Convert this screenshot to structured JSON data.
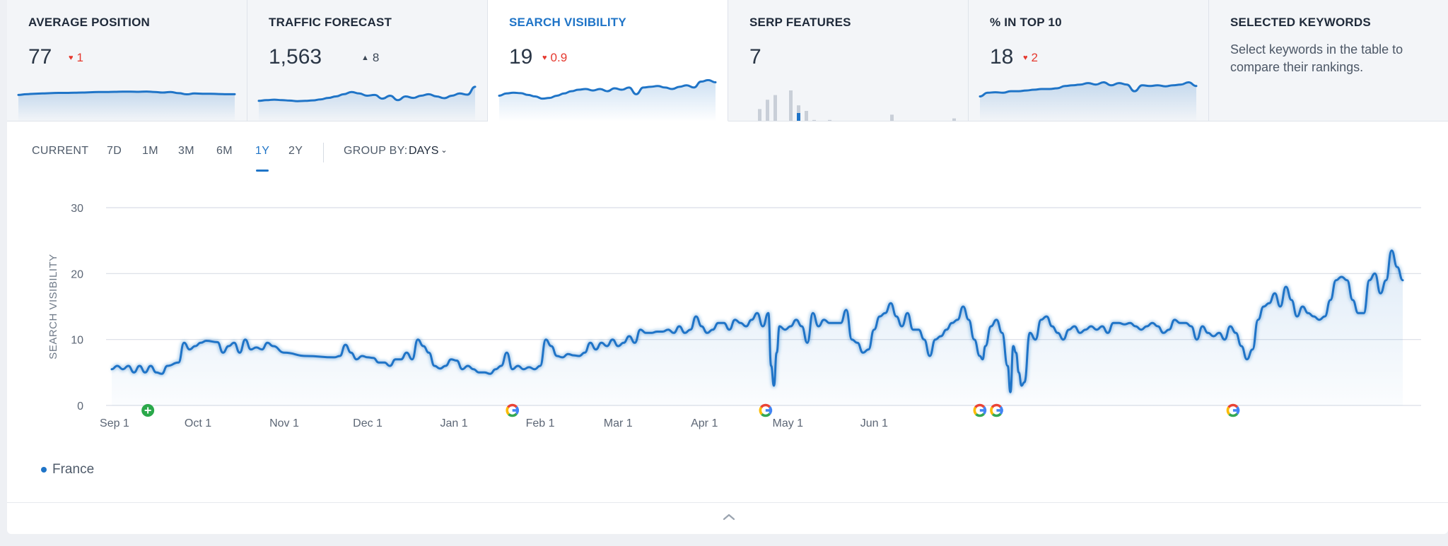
{
  "metrics": [
    {
      "title": "AVERAGE POSITION",
      "value": "77",
      "delta": "1",
      "direction": "down",
      "spark": [
        6,
        6.5,
        6.8,
        7,
        7.2,
        7.4,
        7.4,
        7.5,
        7.6,
        7.8,
        8,
        8,
        8.1,
        8.2,
        8.2,
        8.1,
        8.3,
        8,
        7.6,
        8,
        7.2,
        6.4,
        7,
        6.8,
        6.8,
        6.6,
        6.5,
        6.5
      ]
    },
    {
      "title": "TRAFFIC FORECAST",
      "value": "1,563",
      "delta": "8",
      "direction": "up",
      "spark": [
        2,
        2.5,
        2.8,
        2.5,
        2.2,
        1.8,
        2,
        2.3,
        3,
        4,
        5,
        6.5,
        8,
        7,
        5.5,
        6,
        3.5,
        5.5,
        2.5,
        5,
        4,
        5.5,
        6.5,
        5,
        3.8,
        5.5,
        7,
        6.2,
        11.5
      ]
    },
    {
      "title": "SEARCH VISIBILITY",
      "value": "19",
      "delta": "0.9",
      "direction": "down",
      "spark": [
        5.5,
        7,
        7.5,
        7.2,
        6,
        5,
        3.5,
        4,
        5.5,
        7,
        8.5,
        9.5,
        10,
        9,
        10,
        8.5,
        10.5,
        9.5,
        11,
        6.5,
        11,
        11.5,
        12,
        11,
        10,
        11.5,
        12.5,
        11,
        15,
        16,
        14.5
      ]
    },
    {
      "title": "SERP FEATURES",
      "value": "7",
      "bars": [
        {
          "g": 2,
          "h": 0.4
        },
        {
          "g": 3,
          "h": 0.7
        },
        {
          "g": 4,
          "h": 0.85
        },
        {
          "g": 6,
          "h": 1.0
        },
        {
          "g": 7,
          "h": 0.52,
          "active": true
        },
        {
          "g": 8,
          "h": 0.34
        },
        {
          "g": 9,
          "h": 0.05
        },
        {
          "g": 11,
          "h": 0.05
        },
        {
          "g": 19,
          "h": 0.22
        },
        {
          "g": 27,
          "h": 0.1
        }
      ]
    },
    {
      "title": "% IN TOP 10",
      "value": "18",
      "delta": "2",
      "direction": "down",
      "spark": [
        5,
        7.5,
        7.8,
        7.5,
        8.5,
        8.5,
        9,
        9.5,
        10,
        10,
        10.5,
        12,
        12.5,
        13,
        14,
        13,
        14.5,
        12.5,
        14,
        13,
        8.5,
        12.5,
        12,
        12.5,
        11.8,
        12.5,
        13,
        14.5,
        12
      ]
    },
    {
      "title": "SELECTED KEYWORDS",
      "description": "Select keywords in the table to compare their rankings."
    }
  ],
  "toolbar": {
    "periods": [
      "CURRENT",
      "7D",
      "1M",
      "3M",
      "6M",
      "1Y",
      "2Y"
    ],
    "active_period": "1Y",
    "group_by_label": "GROUP BY:",
    "group_by_value": "DAYS"
  },
  "chart_data": {
    "type": "area",
    "ylabel": "SEARCH VISIBILITY",
    "ylim": [
      0,
      30
    ],
    "yticks": [
      0,
      10,
      20,
      30
    ],
    "xticks": [
      "Sep 1",
      "Oct 1",
      "Nov 1",
      "Dec 1",
      "Jan 1",
      "Feb 1",
      "Mar 1",
      "Apr 1",
      "May 1",
      "Jun 1"
    ],
    "x_start": "Aug 31",
    "x_end": "Jun 21",
    "series": [
      {
        "name": "France",
        "color": "#1f74c7",
        "points": [
          [
            0,
            5.5
          ],
          [
            2,
            6
          ],
          [
            4,
            5.5
          ],
          [
            6,
            6
          ],
          [
            8,
            5
          ],
          [
            10,
            6
          ],
          [
            12,
            5
          ],
          [
            14,
            6
          ],
          [
            16,
            5
          ],
          [
            18,
            4.8
          ],
          [
            20,
            6
          ],
          [
            24,
            6.5
          ],
          [
            26,
            9.5
          ],
          [
            28,
            8.5
          ],
          [
            30,
            9
          ],
          [
            32,
            9.5
          ],
          [
            34,
            9.8
          ],
          [
            38,
            9.6
          ],
          [
            40,
            8
          ],
          [
            42,
            9
          ],
          [
            44,
            9.5
          ],
          [
            46,
            8
          ],
          [
            48,
            10
          ],
          [
            50,
            8.5
          ],
          [
            52,
            8.8
          ],
          [
            54,
            8.5
          ],
          [
            56,
            9.5
          ],
          [
            58,
            9
          ],
          [
            62,
            8
          ],
          [
            70,
            7.5
          ],
          [
            80,
            7.3
          ],
          [
            82,
            7.5
          ],
          [
            84,
            9.2
          ],
          [
            86,
            8
          ],
          [
            88,
            7
          ],
          [
            90,
            7.5
          ],
          [
            92,
            7.3
          ],
          [
            94,
            7.2
          ],
          [
            96,
            6.5
          ],
          [
            98,
            6.5
          ],
          [
            100,
            6
          ],
          [
            102,
            7
          ],
          [
            104,
            7
          ],
          [
            106,
            8
          ],
          [
            108,
            7
          ],
          [
            110,
            10
          ],
          [
            112,
            9
          ],
          [
            114,
            8
          ],
          [
            116,
            6
          ],
          [
            118,
            5.6
          ],
          [
            120,
            6
          ],
          [
            122,
            7
          ],
          [
            124,
            6.8
          ],
          [
            126,
            5.5
          ],
          [
            128,
            6
          ],
          [
            130,
            5.5
          ],
          [
            132,
            5
          ],
          [
            134,
            5
          ],
          [
            136,
            4.8
          ],
          [
            138,
            5.5
          ],
          [
            140,
            6
          ],
          [
            142,
            8
          ],
          [
            144,
            5.5
          ],
          [
            146,
            6
          ],
          [
            148,
            5.5
          ],
          [
            150,
            5.8
          ],
          [
            152,
            5.5
          ],
          [
            154,
            6
          ],
          [
            156,
            10
          ],
          [
            158,
            9
          ],
          [
            160,
            7.5
          ],
          [
            162,
            7.3
          ],
          [
            164,
            7.8
          ],
          [
            166,
            7.6
          ],
          [
            168,
            7.5
          ],
          [
            170,
            8
          ],
          [
            172,
            9.5
          ],
          [
            174,
            8.5
          ],
          [
            176,
            9.5
          ],
          [
            178,
            9
          ],
          [
            180,
            10
          ],
          [
            182,
            9
          ],
          [
            184,
            9.5
          ],
          [
            186,
            10.5
          ],
          [
            188,
            9.5
          ],
          [
            190,
            11.5
          ],
          [
            192,
            11
          ],
          [
            194,
            11
          ],
          [
            196,
            11.2
          ],
          [
            198,
            11.2
          ],
          [
            200,
            11.5
          ],
          [
            202,
            11
          ],
          [
            204,
            12
          ],
          [
            206,
            11
          ],
          [
            208,
            11.5
          ],
          [
            210,
            13.5
          ],
          [
            212,
            12
          ],
          [
            214,
            11
          ],
          [
            216,
            11.5
          ],
          [
            218,
            12.5
          ],
          [
            220,
            12.5
          ],
          [
            222,
            11.5
          ],
          [
            224,
            13
          ],
          [
            226,
            12.5
          ],
          [
            228,
            12
          ],
          [
            230,
            13
          ],
          [
            232,
            14
          ],
          [
            234,
            12
          ],
          [
            236,
            14
          ],
          [
            237,
            6
          ],
          [
            238,
            3
          ],
          [
            239,
            8
          ],
          [
            240,
            12
          ],
          [
            242,
            11.5
          ],
          [
            244,
            12
          ],
          [
            246,
            13
          ],
          [
            248,
            12
          ],
          [
            250,
            9.5
          ],
          [
            252,
            14
          ],
          [
            254,
            12
          ],
          [
            256,
            13
          ],
          [
            258,
            12.5
          ],
          [
            260,
            12.5
          ],
          [
            262,
            12.5
          ],
          [
            264,
            14.5
          ],
          [
            266,
            10
          ],
          [
            268,
            9.5
          ],
          [
            270,
            8
          ],
          [
            272,
            8.5
          ],
          [
            274,
            11.5
          ],
          [
            276,
            13.5
          ],
          [
            278,
            14
          ],
          [
            280,
            15.5
          ],
          [
            282,
            13.5
          ],
          [
            284,
            12
          ],
          [
            286,
            14
          ],
          [
            288,
            11.5
          ],
          [
            290,
            11.5
          ],
          [
            292,
            10
          ],
          [
            294,
            7.5
          ],
          [
            296,
            10
          ],
          [
            298,
            10.5
          ],
          [
            300,
            11.5
          ],
          [
            302,
            12.5
          ],
          [
            304,
            13
          ],
          [
            306,
            15
          ],
          [
            308,
            13
          ],
          [
            310,
            10
          ],
          [
            312,
            7.5
          ],
          [
            313,
            7
          ],
          [
            314,
            9
          ],
          [
            316,
            12
          ],
          [
            318,
            13
          ],
          [
            320,
            11
          ],
          [
            322,
            6
          ],
          [
            323,
            2
          ],
          [
            324,
            9
          ],
          [
            325,
            8
          ],
          [
            326,
            5
          ],
          [
            327,
            3
          ],
          [
            328,
            3.5
          ],
          [
            330,
            11
          ],
          [
            332,
            10
          ],
          [
            334,
            13
          ],
          [
            336,
            13.5
          ],
          [
            338,
            12
          ],
          [
            340,
            11
          ],
          [
            342,
            10
          ],
          [
            344,
            11.5
          ],
          [
            346,
            12
          ],
          [
            348,
            11
          ],
          [
            350,
            11.5
          ],
          [
            352,
            12
          ],
          [
            354,
            11.5
          ],
          [
            356,
            12
          ],
          [
            358,
            11
          ],
          [
            360,
            12.5
          ],
          [
            362,
            12.5
          ],
          [
            364,
            12.3
          ],
          [
            366,
            12.5
          ],
          [
            368,
            12
          ],
          [
            370,
            11.5
          ],
          [
            372,
            12
          ],
          [
            374,
            12.5
          ],
          [
            376,
            12
          ],
          [
            378,
            11
          ],
          [
            380,
            11.5
          ],
          [
            382,
            13
          ],
          [
            384,
            12.5
          ],
          [
            386,
            12.5
          ],
          [
            388,
            12
          ],
          [
            390,
            10
          ],
          [
            392,
            12
          ],
          [
            394,
            11
          ],
          [
            396,
            10.5
          ],
          [
            398,
            11
          ],
          [
            400,
            10
          ],
          [
            402,
            12
          ],
          [
            404,
            11
          ],
          [
            406,
            9
          ],
          [
            408,
            7
          ],
          [
            410,
            8.5
          ],
          [
            412,
            13
          ],
          [
            414,
            15
          ],
          [
            416,
            15.5
          ],
          [
            418,
            17
          ],
          [
            420,
            15
          ],
          [
            422,
            18
          ],
          [
            424,
            16
          ],
          [
            426,
            13.5
          ],
          [
            428,
            15
          ],
          [
            430,
            14
          ],
          [
            432,
            13.5
          ],
          [
            434,
            13
          ],
          [
            436,
            13.5
          ],
          [
            438,
            16
          ],
          [
            440,
            19
          ],
          [
            442,
            19.5
          ],
          [
            444,
            19
          ],
          [
            446,
            16
          ],
          [
            448,
            14
          ],
          [
            450,
            14
          ],
          [
            452,
            19
          ],
          [
            454,
            20
          ],
          [
            456,
            17
          ],
          [
            458,
            19
          ],
          [
            460,
            23.5
          ],
          [
            462,
            21
          ],
          [
            464,
            19
          ]
        ]
      }
    ],
    "annotations": [
      {
        "type": "note-added",
        "x": 13,
        "label": "+"
      },
      {
        "type": "google-update",
        "x": 144
      },
      {
        "type": "google-update",
        "x": 235
      },
      {
        "type": "google-update",
        "x": 312
      },
      {
        "type": "google-update",
        "x": 318
      },
      {
        "type": "google-update",
        "x": 403
      }
    ]
  },
  "legend": {
    "items": [
      {
        "label": "France",
        "color": "#1f74c7"
      }
    ]
  },
  "colors": {
    "accent": "#1f74c7",
    "negative": "#e5382e",
    "grid": "#d9dee6"
  }
}
